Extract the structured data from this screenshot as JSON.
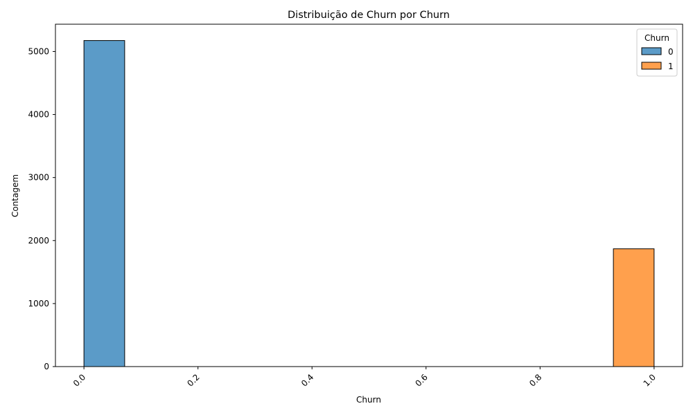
{
  "chart_data": {
    "type": "bar",
    "title": "Distribuição de Churn por Churn",
    "xlabel": "Churn",
    "ylabel": "Contagem",
    "xlim": [
      -0.05,
      1.05
    ],
    "ylim": [
      0,
      5433
    ],
    "x_ticks": [
      0.0,
      0.2,
      0.4,
      0.6,
      0.8,
      1.0
    ],
    "x_tick_labels": [
      "0.0",
      "0.2",
      "0.4",
      "0.6",
      "0.8",
      "1.0"
    ],
    "y_ticks": [
      0,
      1000,
      2000,
      3000,
      4000,
      5000
    ],
    "y_tick_labels": [
      "0",
      "1000",
      "2000",
      "3000",
      "4000",
      "5000"
    ],
    "grid": false,
    "legend": {
      "title": "Churn",
      "placement": "top-right",
      "entries": [
        "0",
        "1"
      ]
    },
    "series": [
      {
        "name": "0",
        "color": "#5b9bc8",
        "bins": [
          {
            "x_start": 0.0,
            "x_end": 0.0714,
            "value": 5174
          },
          {
            "x_start": 0.0714,
            "x_end": 0.9286,
            "value": 0
          },
          {
            "x_start": 0.9286,
            "x_end": 1.0,
            "value": 0
          }
        ]
      },
      {
        "name": "1",
        "color": "#ffa04d",
        "bins": [
          {
            "x_start": 0.0,
            "x_end": 0.0714,
            "value": 0
          },
          {
            "x_start": 0.0714,
            "x_end": 0.9286,
            "value": 0
          },
          {
            "x_start": 0.9286,
            "x_end": 1.0,
            "value": 1869
          }
        ]
      }
    ]
  }
}
